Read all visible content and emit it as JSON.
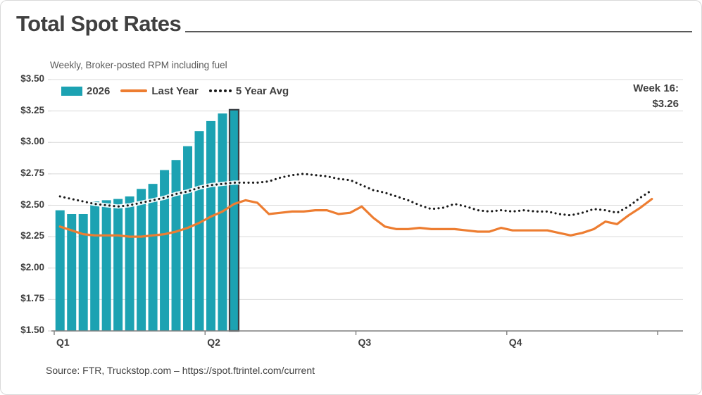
{
  "title": "Total Spot Rates",
  "subtitle": "Weekly, Broker-posted RPM including fuel",
  "annotation": {
    "label": "Week 16:",
    "value": "$3.26"
  },
  "source": "Source: FTR, Truckstop.com – https://spot.ftrintel.com/current",
  "legend": [
    {
      "label": "2026",
      "swatch": "bar"
    },
    {
      "label": "Last Year",
      "swatch": "line"
    },
    {
      "label": "5 Year Avg",
      "swatch": "dots"
    }
  ],
  "colors": {
    "bar_teal": "#1CA2B2",
    "bar_highlight_border": "#3A3F44",
    "line_orange": "#ED7D31",
    "line_dotted": "#1A1A1A",
    "dotted_halo": "#FFFFFF",
    "gridline": "#D9D9D9",
    "axis": "#7F7F7F",
    "text_dark": "#404040",
    "text_gray": "#595959"
  },
  "chart_data": {
    "type": "combo",
    "title": "Total Spot Rates",
    "subtitle": "Weekly, Broker-posted RPM including fuel",
    "x_unit": "week",
    "weeks_per_year": 52,
    "x_axis": {
      "labels": [
        "Q1",
        "Q2",
        "Q3",
        "Q4"
      ],
      "ticks_at_weeks": [
        0,
        13,
        26,
        39,
        52
      ],
      "grid": false
    },
    "y_axis": {
      "min": 1.5,
      "max": 3.5,
      "step": 0.25,
      "grid": true,
      "tick_labels": [
        "$3.50",
        "$3.25",
        "$3.00",
        "$2.75",
        "$2.50",
        "$2.25",
        "$2.00",
        "$1.75",
        "$1.50"
      ]
    },
    "legend_position": "top-left-inside",
    "highlight": {
      "week": 16,
      "value": 3.26,
      "label": "Week 16:",
      "value_label": "$3.26"
    },
    "series": [
      {
        "name": "2026",
        "type": "bar",
        "color": "#1CA2B2",
        "weeks": [
          1,
          2,
          3,
          4,
          5,
          6,
          7,
          8,
          9,
          10,
          11,
          12,
          13,
          14,
          15,
          16
        ],
        "values": [
          2.46,
          2.43,
          2.43,
          2.53,
          2.54,
          2.55,
          2.57,
          2.63,
          2.67,
          2.78,
          2.86,
          2.97,
          3.09,
          3.17,
          3.23,
          3.26
        ]
      },
      {
        "name": "Last Year",
        "type": "line",
        "color": "#ED7D31",
        "values": [
          2.33,
          2.3,
          2.27,
          2.26,
          2.26,
          2.26,
          2.25,
          2.25,
          2.26,
          2.27,
          2.29,
          2.32,
          2.36,
          2.41,
          2.45,
          2.51,
          2.54,
          2.52,
          2.43,
          2.44,
          2.45,
          2.45,
          2.46,
          2.46,
          2.43,
          2.44,
          2.49,
          2.4,
          2.33,
          2.31,
          2.31,
          2.32,
          2.31,
          2.31,
          2.31,
          2.3,
          2.29,
          2.29,
          2.32,
          2.3,
          2.3,
          2.3,
          2.3,
          2.28,
          2.26,
          2.28,
          2.31,
          2.37,
          2.35,
          2.42,
          2.48,
          2.55
        ]
      },
      {
        "name": "5 Year Avg",
        "type": "dotted-line",
        "color": "#1A1A1A",
        "values": [
          2.57,
          2.55,
          2.53,
          2.51,
          2.5,
          2.49,
          2.5,
          2.52,
          2.54,
          2.56,
          2.59,
          2.61,
          2.64,
          2.66,
          2.67,
          2.68,
          2.68,
          2.68,
          2.69,
          2.72,
          2.74,
          2.75,
          2.74,
          2.73,
          2.71,
          2.7,
          2.66,
          2.62,
          2.6,
          2.57,
          2.54,
          2.5,
          2.47,
          2.48,
          2.51,
          2.49,
          2.46,
          2.45,
          2.46,
          2.45,
          2.46,
          2.45,
          2.45,
          2.43,
          2.42,
          2.44,
          2.47,
          2.46,
          2.44,
          2.49,
          2.56,
          2.62
        ]
      }
    ]
  }
}
